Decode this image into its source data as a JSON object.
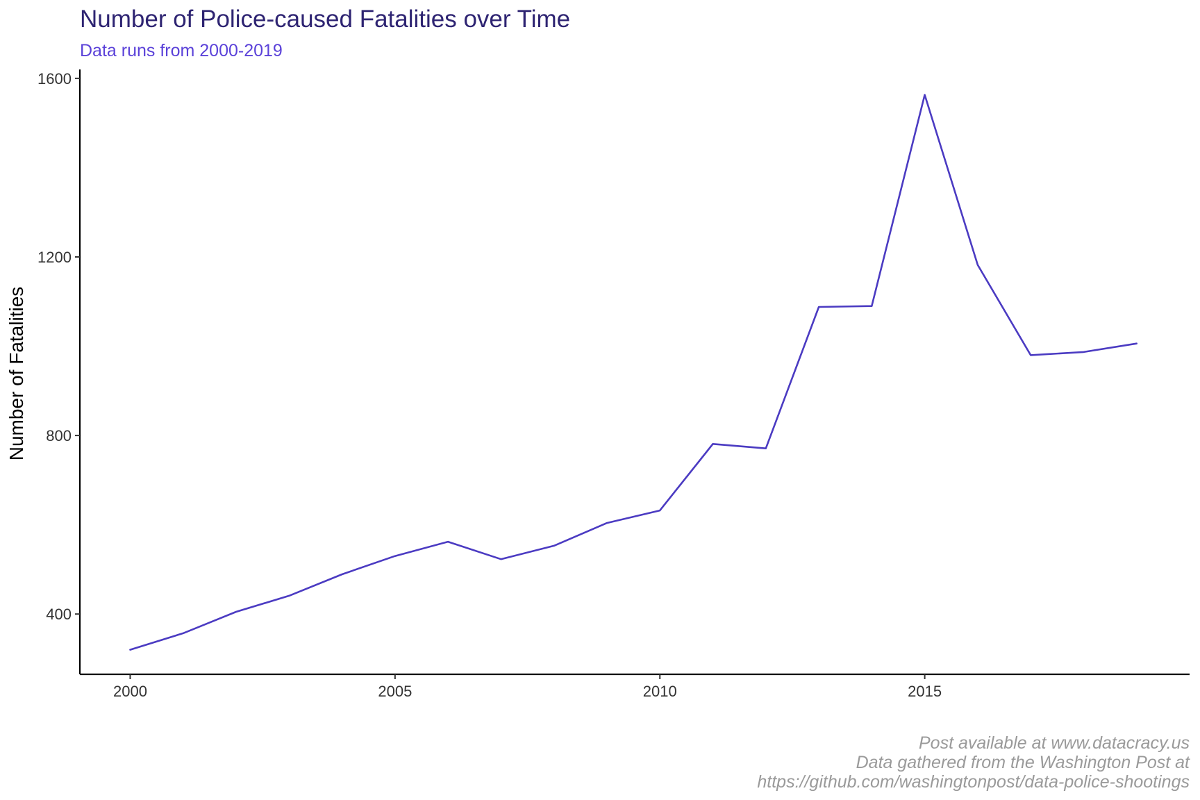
{
  "chart_data": {
    "type": "line",
    "title": "Number of Police-caused Fatalities over Time",
    "subtitle": "Data runs from 2000-2019",
    "xlabel": "",
    "ylabel": "Number of Fatalities",
    "x": [
      2000,
      2001,
      2002,
      2003,
      2004,
      2005,
      2006,
      2007,
      2008,
      2009,
      2010,
      2011,
      2012,
      2013,
      2014,
      2015,
      2016,
      2017,
      2018,
      2019
    ],
    "series": [
      {
        "values": [
          320,
          357,
          405,
          441,
          489,
          530,
          562,
          523,
          553,
          604,
          632,
          781,
          771,
          1088,
          1090,
          1563,
          1182,
          980,
          987,
          1006
        ]
      }
    ],
    "xlim": [
      1999.05,
      2020.0
    ],
    "ylim": [
      265,
      1620
    ],
    "x_ticks": [
      2000,
      2005,
      2010,
      2015
    ],
    "x_tick_labels": [
      "2000",
      "2005",
      "2010",
      "2015"
    ],
    "y_ticks": [
      400,
      800,
      1200,
      1600
    ],
    "y_tick_labels": [
      "400",
      "800",
      "1200",
      "1600"
    ],
    "caption_lines": [
      "Post available at www.datacracy.us",
      "Data gathered from the Washington Post at",
      "https://github.com/washingtonpost/data-police-shootings"
    ],
    "grid": false,
    "colors": {
      "line": "#4B3BC2",
      "title": "#2E2472",
      "subtitle": "#5B42D9",
      "caption": "#9A9A9A"
    }
  }
}
